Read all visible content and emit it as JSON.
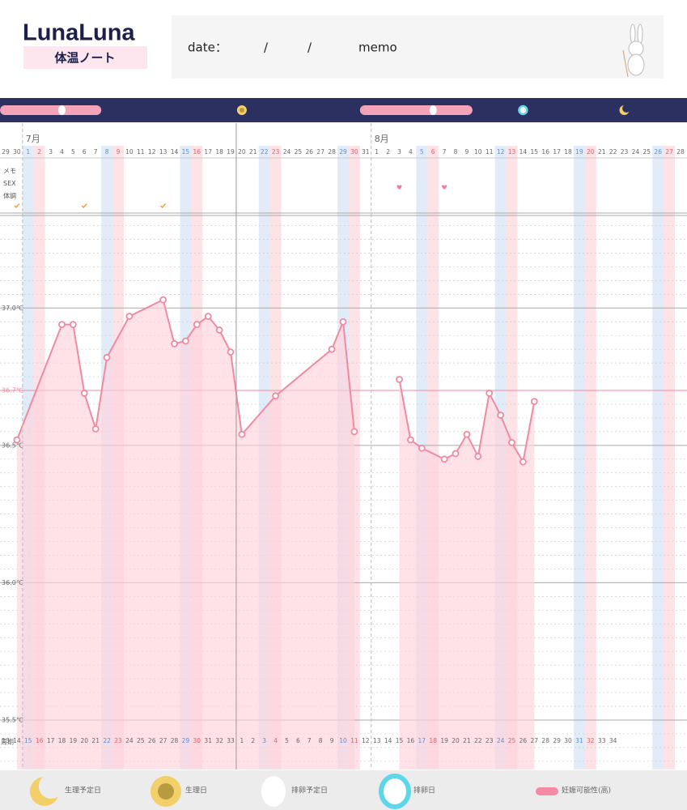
{
  "header": {
    "logo": "LunaLuna",
    "subtitle": "体温ノート",
    "date_label": "date：",
    "separator_1": "/",
    "separator_2": "/",
    "memo_label": "memo"
  },
  "chart_data": {
    "type": "line",
    "months": [
      {
        "days": [
          "29",
          "30"
        ]
      },
      {
        "label": "7月",
        "days": [
          "1",
          "2",
          "3",
          "4",
          "5",
          "6",
          "7",
          "8",
          "9",
          "10",
          "11",
          "12",
          "13",
          "14",
          "15",
          "16",
          "17",
          "18",
          "19",
          "20",
          "21",
          "22",
          "23",
          "24",
          "25",
          "26",
          "27",
          "28",
          "29",
          "30",
          "31"
        ]
      },
      {
        "label": "8月",
        "days": [
          "1",
          "2",
          "3",
          "4",
          "5",
          "6",
          "7",
          "8",
          "9",
          "10",
          "11",
          "12",
          "13",
          "14",
          "15",
          "16",
          "17",
          "18",
          "19",
          "20",
          "21",
          "22",
          "23",
          "24",
          "25",
          "26",
          "27",
          "28"
        ]
      }
    ],
    "series": [
      {
        "color": "#f08aa0",
        "area_color": "#ffd3da",
        "values": [
          null,
          36.52,
          null,
          null,
          null,
          36.94,
          36.94,
          36.69,
          36.56,
          36.82,
          null,
          36.97,
          null,
          null,
          37.03,
          36.87,
          36.88,
          36.94,
          36.97,
          36.92,
          36.84,
          36.54,
          null,
          null,
          36.68,
          null,
          null,
          null,
          null,
          36.85,
          36.95,
          36.55,
          null,
          null,
          null,
          null,
          null,
          null,
          null,
          null,
          null,
          null,
          null,
          null,
          null,
          null,
          null,
          null,
          null,
          null,
          null,
          null,
          null,
          null,
          null,
          null,
          null,
          null,
          null,
          null,
          null
        ]
      },
      {
        "color": "#f08aa0",
        "area_color": "#ffd3da",
        "values": [
          null,
          null,
          null,
          null,
          null,
          null,
          null,
          null,
          null,
          null,
          null,
          null,
          null,
          null,
          null,
          null,
          null,
          null,
          null,
          null,
          null,
          null,
          null,
          null,
          null,
          null,
          null,
          null,
          null,
          null,
          null,
          null,
          null,
          null,
          null,
          36.74,
          36.52,
          36.49,
          null,
          36.45,
          36.47,
          36.54,
          36.46,
          36.69,
          36.61,
          36.51,
          36.44,
          36.66,
          null,
          null,
          null,
          null,
          null,
          null,
          null,
          null,
          null,
          null,
          null,
          null,
          null
        ]
      }
    ],
    "connect_gaps": true,
    "ylim": [
      35.32,
      37.34
    ],
    "yticks": [
      {
        "value": 37.0,
        "label": "37.0℃"
      },
      {
        "value": 36.5,
        "label": "36.5℃"
      },
      {
        "value": 36.0,
        "label": "36.0℃"
      },
      {
        "value": 35.5,
        "label": "35.5℃"
      }
    ],
    "reference_line": {
      "value": 36.7,
      "label": "36.7℃",
      "color": "#f08aa0"
    },
    "minor_yticks": [
      35.35,
      35.4,
      35.45,
      35.55,
      35.6,
      35.65,
      35.7,
      35.75,
      35.8,
      35.85,
      35.9,
      35.95,
      36.05,
      36.1,
      36.15,
      36.2,
      36.25,
      36.3,
      36.35,
      36.4,
      36.45,
      36.55,
      36.6,
      36.65,
      36.75,
      36.8,
      36.85,
      36.9,
      36.95,
      37.05,
      37.1,
      37.15,
      37.2,
      37.25,
      37.3
    ],
    "cycle_label": "周期",
    "cycle_days": [
      13,
      14,
      15,
      16,
      17,
      18,
      19,
      20,
      21,
      22,
      23,
      24,
      25,
      26,
      27,
      28,
      29,
      30,
      31,
      32,
      33,
      1,
      2,
      3,
      4,
      5,
      6,
      7,
      8,
      9,
      10,
      11,
      12,
      13,
      14,
      15,
      16,
      17,
      18,
      19,
      20,
      21,
      22,
      23,
      24,
      25,
      26,
      27,
      28,
      29,
      30,
      31,
      32,
      33,
      34,
      null,
      null,
      null,
      null,
      null,
      null
    ],
    "memo_rows": [
      "メモ",
      "SEX",
      "体調"
    ],
    "sex": [
      35,
      39
    ],
    "condition": [
      1,
      7,
      14
    ],
    "markers": {
      "fertile": [
        [
          0,
          8
        ],
        [
          32,
          41
        ]
      ],
      "ovulation_predicted": [
        5,
        38
      ],
      "period": [
        21
      ],
      "ovulation": [
        46
      ],
      "period_predicted": [
        55
      ]
    }
  },
  "legend": {
    "items": [
      "生理予定日",
      "生理日",
      "排卵予定日",
      "排卵日",
      "妊娠可能性(高)"
    ]
  }
}
